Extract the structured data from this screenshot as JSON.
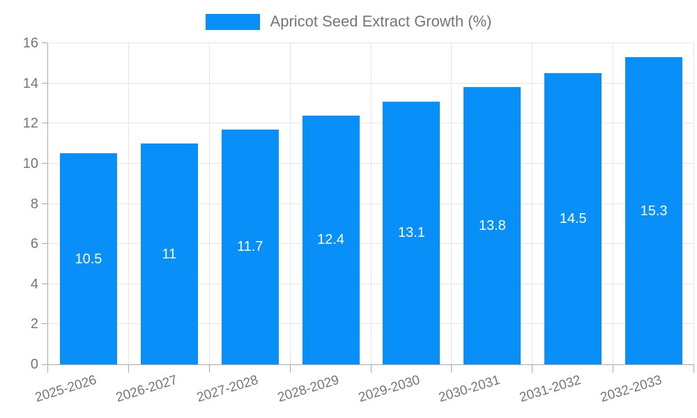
{
  "legend": {
    "label": "Apricot Seed Extract Growth (%)"
  },
  "colors": {
    "bar": "#0890f8",
    "grid": "#e6e6e6",
    "axis": "#a9a9a9",
    "tick_text": "#757575",
    "bar_label_text": "#ffffff",
    "background": "#ffffff"
  },
  "chart_data": {
    "type": "bar",
    "title": "Apricot Seed Extract Growth (%)",
    "categories": [
      "2025-2026",
      "2026-2027",
      "2027-2028",
      "2028-2029",
      "2029-2030",
      "2030-2031",
      "2031-2032",
      "2032-2033"
    ],
    "values": [
      10.5,
      11,
      11.7,
      12.4,
      13.1,
      13.8,
      14.5,
      15.3
    ],
    "bar_labels": [
      "10.5",
      "11",
      "11.7",
      "12.4",
      "13.1",
      "13.8",
      "14.5",
      "15.3"
    ],
    "xlabel": "",
    "ylabel": "",
    "ylim": [
      0,
      16
    ],
    "yticks": [
      0,
      2,
      4,
      6,
      8,
      10,
      12,
      14,
      16
    ],
    "grid": true,
    "legend_position": "top",
    "bar_label_position": "middle",
    "x_label_rotation_deg": -17
  }
}
